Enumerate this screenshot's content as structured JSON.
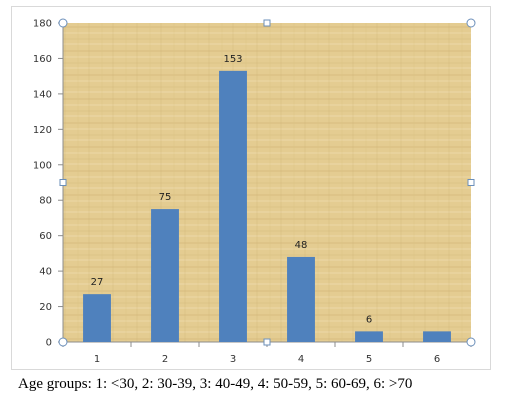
{
  "colors": {
    "bar": "#4f81bd",
    "plot_background": "#e4cc91",
    "axis": "#8c8c8c",
    "handle_stroke": "#6b8fba"
  },
  "caption": "Age groups: 1: <30, 2: 30-39, 3: 40-49, 4: 50-59, 5: 60-69, 6: >70",
  "chart_data": {
    "type": "bar",
    "categories": [
      "1",
      "2",
      "3",
      "4",
      "5",
      "6"
    ],
    "values": [
      27,
      75,
      153,
      48,
      6,
      6
    ],
    "data_labels": [
      "27",
      "75",
      "153",
      "48",
      "6",
      ""
    ],
    "title": "",
    "xlabel": "",
    "ylabel": "",
    "ylim": [
      0,
      180
    ],
    "yticks": [
      0,
      20,
      40,
      60,
      80,
      100,
      120,
      140,
      160,
      180
    ],
    "grid": false,
    "legend": "none"
  }
}
